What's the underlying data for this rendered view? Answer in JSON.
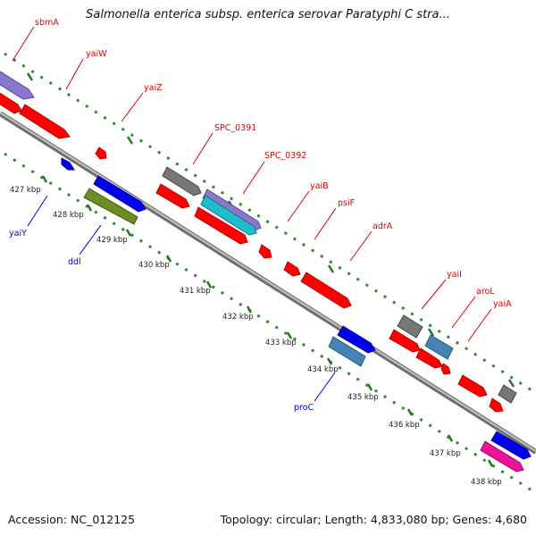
{
  "header": {
    "title": "Salmonella enterica subsp. enterica serovar Paratyphi C stra..."
  },
  "footer": {
    "accession": "Accession: NC_012125",
    "topology": "Topology: circular; Length: 4,833,080 bp; Genes: 4,680"
  },
  "colors": {
    "forward_gene": "#ff0000",
    "reverse_gene": "#0000ee",
    "gray_gene": "#808080",
    "purple_gene": "#8877cc",
    "steelblue_gene": "#4682b4",
    "olive_gene": "#6b8e23",
    "pink_gene": "#ee1199",
    "cyan_gene": "#22bbcc",
    "forward_label": "#dd0000",
    "reverse_label": "#0000cc",
    "tick_dots": "#338833",
    "backbone": "#a0a0a0"
  },
  "kbp_labels": [
    "427 kbp",
    "428 kbp",
    "429 kbp",
    "430 kbp",
    "431 kbp",
    "432 kbp",
    "433 kbp",
    "434 kbp",
    "435 kbp",
    "436 kbp",
    "437 kbp",
    "438 kbp"
  ],
  "forward_gene_labels": [
    "sbmA",
    "yaiW",
    "yaiZ",
    "SPC_0391",
    "SPC_0392",
    "yaiB",
    "psiF",
    "adrA",
    "yaiI",
    "aroL",
    "yaiA"
  ],
  "reverse_gene_labels": [
    "yaiY",
    "ddl",
    "proC"
  ]
}
